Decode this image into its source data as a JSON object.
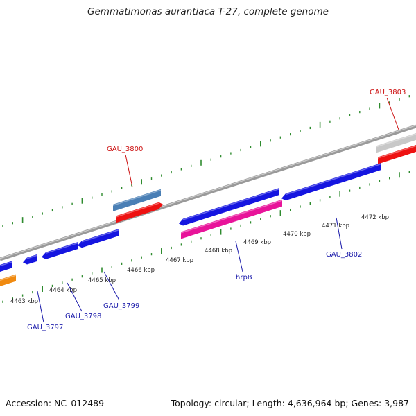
{
  "title": "Gemmatimonas aurantiaca T-27, complete genome",
  "footer": {
    "accession": "Accession: NC_012489",
    "summary": "Topology: circular; Length: 4,636,964 bp; Genes: 3,987"
  },
  "colors": {
    "backbone": "#888888",
    "tick": "#2e8b2e",
    "forward_label": "#cc1111",
    "reverse_label": "#1a1aaa",
    "gene_blue": "#1515e0",
    "gene_red": "#ee1111",
    "gene_steel": "#4a7fb5",
    "gene_magenta": "#e8149a",
    "gene_orange": "#f08a10",
    "gene_gray": "#c8c8c8"
  },
  "ticks": {
    "labels": [
      "4463 kbp",
      "4464 kbp",
      "4465 kbp",
      "4466 kbp",
      "4467 kbp",
      "4468 kbp",
      "4469 kbp",
      "4470 kbp",
      "4471 kbp",
      "4472 kbp"
    ]
  },
  "genes": {
    "labeled": [
      {
        "name": "GAU_3797",
        "strand": "reverse"
      },
      {
        "name": "GAU_3798",
        "strand": "reverse"
      },
      {
        "name": "GAU_3799",
        "strand": "reverse"
      },
      {
        "name": "GAU_3800",
        "strand": "forward"
      },
      {
        "name": "hrpB",
        "strand": "reverse"
      },
      {
        "name": "GAU_3802",
        "strand": "reverse"
      },
      {
        "name": "GAU_3803",
        "strand": "forward"
      }
    ]
  }
}
